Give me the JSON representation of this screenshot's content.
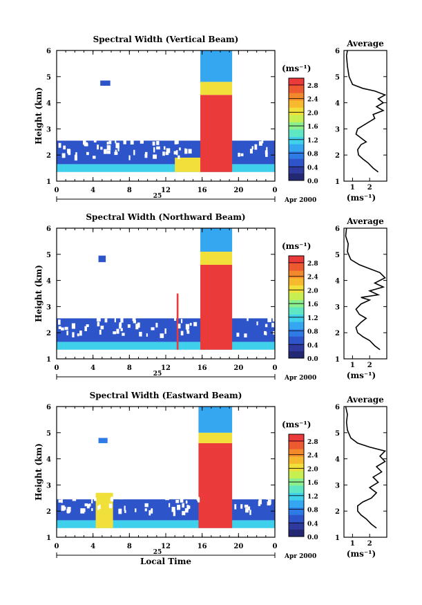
{
  "chart_data": [
    {
      "type": "heatmap",
      "title": "Spectral Width (Vertical Beam)",
      "ylabel": "Height (km)",
      "x_ticks": [
        "0",
        "4",
        "8",
        "12",
        "16",
        "20",
        "0"
      ],
      "y_ticks": [
        "1",
        "2",
        "3",
        "4",
        "5",
        "6"
      ],
      "xlim": [
        0,
        24
      ],
      "ylim": [
        1,
        6
      ],
      "day_label": "25",
      "date_label": "Apr 2000",
      "colorbar": {
        "label": "(ms⁻¹)",
        "ticks": [
          "0.0",
          "0.4",
          "0.8",
          "1.2",
          "1.6",
          "2.0",
          "2.4",
          "2.8"
        ],
        "range": [
          0,
          3.0
        ]
      },
      "regions": [
        {
          "t0": 0.0,
          "t1": 24.0,
          "h0": 1.35,
          "h1": 1.65,
          "value": 1.2
        },
        {
          "t0": 0.0,
          "t1": 24.0,
          "h0": 1.65,
          "h1": 2.55,
          "value": 0.5
        },
        {
          "t0": 4.8,
          "t1": 5.9,
          "h0": 4.65,
          "h1": 4.85,
          "value": 0.6
        },
        {
          "t0": 13.0,
          "t1": 16.0,
          "h0": 1.35,
          "h1": 1.9,
          "value": 2.0
        },
        {
          "t0": 15.8,
          "t1": 19.3,
          "h0": 1.35,
          "h1": 4.3,
          "value": 2.9
        },
        {
          "t0": 15.8,
          "t1": 19.3,
          "h0": 4.3,
          "h1": 4.8,
          "value": 2.0
        },
        {
          "t0": 15.8,
          "t1": 19.3,
          "h0": 4.8,
          "h1": 6.0,
          "value": 0.9
        }
      ],
      "average_profile": {
        "title": "Average",
        "xlabel": "(ms⁻¹)",
        "x_ticks": [
          "1",
          "2"
        ],
        "y_ticks": [
          "1",
          "2",
          "3",
          "4",
          "5",
          "6"
        ],
        "xlim": [
          0.5,
          3.0
        ],
        "ylim": [
          1,
          6
        ],
        "points": [
          [
            2.5,
            1.35
          ],
          [
            2.2,
            1.5
          ],
          [
            1.9,
            1.7
          ],
          [
            1.6,
            1.85
          ],
          [
            1.35,
            2.0
          ],
          [
            1.3,
            2.2
          ],
          [
            1.5,
            2.4
          ],
          [
            1.8,
            2.5
          ],
          [
            1.5,
            2.65
          ],
          [
            1.2,
            2.8
          ],
          [
            1.3,
            3.0
          ],
          [
            1.8,
            3.2
          ],
          [
            2.3,
            3.4
          ],
          [
            2.2,
            3.55
          ],
          [
            2.8,
            3.7
          ],
          [
            2.4,
            3.85
          ],
          [
            2.8,
            4.0
          ],
          [
            2.5,
            4.15
          ],
          [
            2.9,
            4.3
          ],
          [
            2.3,
            4.45
          ],
          [
            1.6,
            4.55
          ],
          [
            1.0,
            4.7
          ],
          [
            0.8,
            5.0
          ],
          [
            0.7,
            5.4
          ],
          [
            0.65,
            5.8
          ],
          [
            0.7,
            6.0
          ]
        ]
      }
    },
    {
      "type": "heatmap",
      "title": "Spectral Width (Northward Beam)",
      "ylabel": "Height (km)",
      "x_ticks": [
        "0",
        "4",
        "8",
        "12",
        "16",
        "20",
        "0"
      ],
      "y_ticks": [
        "1",
        "2",
        "3",
        "4",
        "5",
        "6"
      ],
      "xlim": [
        0,
        24
      ],
      "ylim": [
        1,
        6
      ],
      "day_label": "25",
      "date_label": "Apr 2000",
      "colorbar": {
        "label": "(ms⁻¹)",
        "ticks": [
          "0.0",
          "0.4",
          "0.8",
          "1.2",
          "1.6",
          "2.0",
          "2.4",
          "2.8"
        ],
        "range": [
          0,
          3.0
        ]
      },
      "regions": [
        {
          "t0": 0.0,
          "t1": 24.0,
          "h0": 1.35,
          "h1": 1.65,
          "value": 1.2
        },
        {
          "t0": 0.0,
          "t1": 24.0,
          "h0": 1.65,
          "h1": 2.55,
          "value": 0.5
        },
        {
          "t0": 4.6,
          "t1": 5.4,
          "h0": 4.7,
          "h1": 4.95,
          "value": 0.6
        },
        {
          "t0": 13.2,
          "t1": 13.4,
          "h0": 1.35,
          "h1": 3.5,
          "value": 2.9
        },
        {
          "t0": 15.8,
          "t1": 19.3,
          "h0": 1.35,
          "h1": 4.6,
          "value": 2.9
        },
        {
          "t0": 15.8,
          "t1": 19.3,
          "h0": 4.6,
          "h1": 5.1,
          "value": 2.0
        },
        {
          "t0": 15.8,
          "t1": 19.3,
          "h0": 5.1,
          "h1": 6.0,
          "value": 0.9
        }
      ],
      "average_profile": {
        "title": "Average",
        "xlabel": "(ms⁻¹)",
        "x_ticks": [
          "1",
          "2"
        ],
        "y_ticks": [
          "1",
          "2",
          "3",
          "4",
          "5",
          "6"
        ],
        "xlim": [
          0.5,
          3.0
        ],
        "ylim": [
          1,
          6
        ],
        "points": [
          [
            2.6,
            1.35
          ],
          [
            2.3,
            1.5
          ],
          [
            2.0,
            1.7
          ],
          [
            1.6,
            1.85
          ],
          [
            1.3,
            2.0
          ],
          [
            1.2,
            2.2
          ],
          [
            1.5,
            2.4
          ],
          [
            1.8,
            2.55
          ],
          [
            1.4,
            2.7
          ],
          [
            1.2,
            2.9
          ],
          [
            1.5,
            3.1
          ],
          [
            2.0,
            3.25
          ],
          [
            1.5,
            3.35
          ],
          [
            2.5,
            3.45
          ],
          [
            2.0,
            3.6
          ],
          [
            2.8,
            3.75
          ],
          [
            2.3,
            3.9
          ],
          [
            2.9,
            4.1
          ],
          [
            2.6,
            4.3
          ],
          [
            2.0,
            4.45
          ],
          [
            1.4,
            4.6
          ],
          [
            0.9,
            4.8
          ],
          [
            0.7,
            5.1
          ],
          [
            0.75,
            5.4
          ],
          [
            0.6,
            5.7
          ],
          [
            0.65,
            6.0
          ]
        ]
      }
    },
    {
      "type": "heatmap",
      "title": "Spectral Width (Eastward Beam)",
      "ylabel": "Height (km)",
      "x_ticks": [
        "0",
        "4",
        "8",
        "12",
        "16",
        "20",
        "0"
      ],
      "y_ticks": [
        "1",
        "2",
        "3",
        "4",
        "5",
        "6"
      ],
      "xlim": [
        0,
        24
      ],
      "ylim": [
        1,
        6
      ],
      "day_label": "25",
      "date_label": "Apr 2000",
      "xlabel": "Local Time",
      "colorbar": {
        "label": "(ms⁻¹)",
        "ticks": [
          "0.0",
          "0.4",
          "0.8",
          "1.2",
          "1.6",
          "2.0",
          "2.4",
          "2.8"
        ],
        "range": [
          0,
          3.0
        ]
      },
      "regions": [
        {
          "t0": 0.0,
          "t1": 24.0,
          "h0": 1.35,
          "h1": 1.65,
          "value": 1.2
        },
        {
          "t0": 0.0,
          "t1": 24.0,
          "h0": 1.65,
          "h1": 2.45,
          "value": 0.5
        },
        {
          "t0": 4.3,
          "t1": 6.2,
          "h0": 1.35,
          "h1": 2.7,
          "value": 2.1
        },
        {
          "t0": 4.6,
          "t1": 5.6,
          "h0": 4.6,
          "h1": 4.8,
          "value": 0.7
        },
        {
          "t0": 15.6,
          "t1": 19.3,
          "h0": 1.35,
          "h1": 4.6,
          "value": 2.9
        },
        {
          "t0": 15.6,
          "t1": 19.3,
          "h0": 4.6,
          "h1": 5.0,
          "value": 2.0
        },
        {
          "t0": 15.6,
          "t1": 19.3,
          "h0": 5.0,
          "h1": 6.0,
          "value": 0.9
        }
      ],
      "average_profile": {
        "title": "Average",
        "xlabel": "(ms⁻¹)",
        "x_ticks": [
          "1",
          "2"
        ],
        "y_ticks": [
          "1",
          "2",
          "3",
          "4",
          "5",
          "6"
        ],
        "xlim": [
          0.5,
          3.0
        ],
        "ylim": [
          1,
          6
        ],
        "points": [
          [
            2.4,
            1.35
          ],
          [
            2.1,
            1.5
          ],
          [
            1.8,
            1.7
          ],
          [
            1.5,
            1.85
          ],
          [
            1.3,
            2.0
          ],
          [
            1.3,
            2.2
          ],
          [
            1.6,
            2.35
          ],
          [
            2.1,
            2.5
          ],
          [
            2.4,
            2.7
          ],
          [
            2.0,
            2.9
          ],
          [
            2.5,
            3.1
          ],
          [
            2.2,
            3.3
          ],
          [
            2.7,
            3.5
          ],
          [
            2.4,
            3.7
          ],
          [
            2.9,
            3.9
          ],
          [
            2.6,
            4.1
          ],
          [
            2.9,
            4.3
          ],
          [
            2.0,
            4.45
          ],
          [
            1.3,
            4.6
          ],
          [
            0.9,
            4.8
          ],
          [
            0.7,
            5.1
          ],
          [
            0.65,
            5.4
          ],
          [
            0.7,
            5.7
          ],
          [
            0.6,
            6.0
          ]
        ]
      }
    }
  ]
}
